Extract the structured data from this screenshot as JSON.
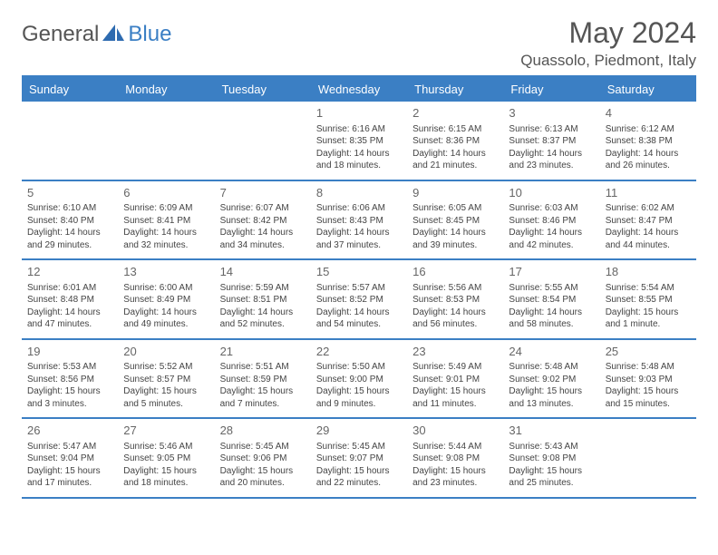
{
  "logo": {
    "general": "General",
    "blue": "Blue"
  },
  "title": "May 2024",
  "location": "Quassolo, Piedmont, Italy",
  "colors": {
    "accent": "#3b7fc4",
    "text": "#444",
    "heading": "#555",
    "bg": "#ffffff"
  },
  "weekdays": [
    "Sunday",
    "Monday",
    "Tuesday",
    "Wednesday",
    "Thursday",
    "Friday",
    "Saturday"
  ],
  "weeks": [
    [
      null,
      null,
      null,
      {
        "n": "1",
        "sunrise": "6:16 AM",
        "sunset": "8:35 PM",
        "day_h": 14,
        "day_m": 18
      },
      {
        "n": "2",
        "sunrise": "6:15 AM",
        "sunset": "8:36 PM",
        "day_h": 14,
        "day_m": 21
      },
      {
        "n": "3",
        "sunrise": "6:13 AM",
        "sunset": "8:37 PM",
        "day_h": 14,
        "day_m": 23
      },
      {
        "n": "4",
        "sunrise": "6:12 AM",
        "sunset": "8:38 PM",
        "day_h": 14,
        "day_m": 26
      }
    ],
    [
      {
        "n": "5",
        "sunrise": "6:10 AM",
        "sunset": "8:40 PM",
        "day_h": 14,
        "day_m": 29
      },
      {
        "n": "6",
        "sunrise": "6:09 AM",
        "sunset": "8:41 PM",
        "day_h": 14,
        "day_m": 32
      },
      {
        "n": "7",
        "sunrise": "6:07 AM",
        "sunset": "8:42 PM",
        "day_h": 14,
        "day_m": 34
      },
      {
        "n": "8",
        "sunrise": "6:06 AM",
        "sunset": "8:43 PM",
        "day_h": 14,
        "day_m": 37
      },
      {
        "n": "9",
        "sunrise": "6:05 AM",
        "sunset": "8:45 PM",
        "day_h": 14,
        "day_m": 39
      },
      {
        "n": "10",
        "sunrise": "6:03 AM",
        "sunset": "8:46 PM",
        "day_h": 14,
        "day_m": 42
      },
      {
        "n": "11",
        "sunrise": "6:02 AM",
        "sunset": "8:47 PM",
        "day_h": 14,
        "day_m": 44
      }
    ],
    [
      {
        "n": "12",
        "sunrise": "6:01 AM",
        "sunset": "8:48 PM",
        "day_h": 14,
        "day_m": 47
      },
      {
        "n": "13",
        "sunrise": "6:00 AM",
        "sunset": "8:49 PM",
        "day_h": 14,
        "day_m": 49
      },
      {
        "n": "14",
        "sunrise": "5:59 AM",
        "sunset": "8:51 PM",
        "day_h": 14,
        "day_m": 52
      },
      {
        "n": "15",
        "sunrise": "5:57 AM",
        "sunset": "8:52 PM",
        "day_h": 14,
        "day_m": 54
      },
      {
        "n": "16",
        "sunrise": "5:56 AM",
        "sunset": "8:53 PM",
        "day_h": 14,
        "day_m": 56
      },
      {
        "n": "17",
        "sunrise": "5:55 AM",
        "sunset": "8:54 PM",
        "day_h": 14,
        "day_m": 58
      },
      {
        "n": "18",
        "sunrise": "5:54 AM",
        "sunset": "8:55 PM",
        "day_h": 15,
        "day_m": 1
      }
    ],
    [
      {
        "n": "19",
        "sunrise": "5:53 AM",
        "sunset": "8:56 PM",
        "day_h": 15,
        "day_m": 3
      },
      {
        "n": "20",
        "sunrise": "5:52 AM",
        "sunset": "8:57 PM",
        "day_h": 15,
        "day_m": 5
      },
      {
        "n": "21",
        "sunrise": "5:51 AM",
        "sunset": "8:59 PM",
        "day_h": 15,
        "day_m": 7
      },
      {
        "n": "22",
        "sunrise": "5:50 AM",
        "sunset": "9:00 PM",
        "day_h": 15,
        "day_m": 9
      },
      {
        "n": "23",
        "sunrise": "5:49 AM",
        "sunset": "9:01 PM",
        "day_h": 15,
        "day_m": 11
      },
      {
        "n": "24",
        "sunrise": "5:48 AM",
        "sunset": "9:02 PM",
        "day_h": 15,
        "day_m": 13
      },
      {
        "n": "25",
        "sunrise": "5:48 AM",
        "sunset": "9:03 PM",
        "day_h": 15,
        "day_m": 15
      }
    ],
    [
      {
        "n": "26",
        "sunrise": "5:47 AM",
        "sunset": "9:04 PM",
        "day_h": 15,
        "day_m": 17
      },
      {
        "n": "27",
        "sunrise": "5:46 AM",
        "sunset": "9:05 PM",
        "day_h": 15,
        "day_m": 18
      },
      {
        "n": "28",
        "sunrise": "5:45 AM",
        "sunset": "9:06 PM",
        "day_h": 15,
        "day_m": 20
      },
      {
        "n": "29",
        "sunrise": "5:45 AM",
        "sunset": "9:07 PM",
        "day_h": 15,
        "day_m": 22
      },
      {
        "n": "30",
        "sunrise": "5:44 AM",
        "sunset": "9:08 PM",
        "day_h": 15,
        "day_m": 23
      },
      {
        "n": "31",
        "sunrise": "5:43 AM",
        "sunset": "9:08 PM",
        "day_h": 15,
        "day_m": 25
      },
      null
    ]
  ],
  "labels": {
    "sunrise": "Sunrise:",
    "sunset": "Sunset:",
    "daylight": "Daylight:",
    "hours": "hours",
    "and": "and",
    "minutes": "minutes.",
    "minute": "minute."
  }
}
